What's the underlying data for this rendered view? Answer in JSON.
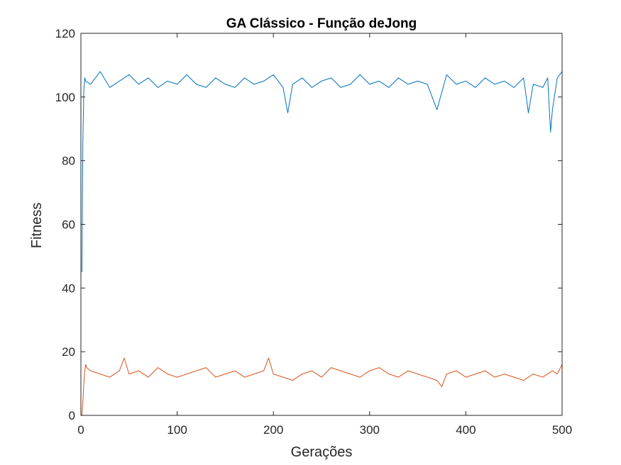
{
  "chart_data": {
    "type": "line",
    "title": "GA Clássico - Função deJong",
    "xlabel": "Gerações",
    "ylabel": "Fitness",
    "xlim": [
      0,
      500
    ],
    "ylim": [
      0,
      120
    ],
    "xticks": [
      0,
      100,
      200,
      300,
      400,
      500
    ],
    "yticks": [
      0,
      20,
      40,
      60,
      80,
      100,
      120
    ],
    "grid": false,
    "legend": "none",
    "series": [
      {
        "color": "#0072BD",
        "x": [
          1,
          2,
          3,
          4,
          5,
          10,
          20,
          30,
          40,
          50,
          60,
          70,
          80,
          90,
          100,
          110,
          120,
          130,
          140,
          150,
          160,
          170,
          180,
          190,
          200,
          210,
          215,
          220,
          230,
          240,
          250,
          260,
          270,
          280,
          290,
          300,
          310,
          320,
          330,
          340,
          350,
          360,
          370,
          380,
          390,
          400,
          410,
          420,
          430,
          440,
          450,
          460,
          465,
          470,
          480,
          485,
          488,
          490,
          495,
          500
        ],
        "values": [
          45,
          85,
          102,
          106,
          105,
          104,
          108,
          103,
          105,
          107,
          104,
          106,
          103,
          105,
          104,
          107,
          104,
          103,
          106,
          104,
          103,
          106,
          104,
          105,
          107,
          103,
          95,
          104,
          106,
          103,
          105,
          106,
          103,
          104,
          107,
          104,
          105,
          103,
          106,
          104,
          105,
          104,
          96,
          107,
          104,
          105,
          103,
          106,
          104,
          105,
          103,
          106,
          95,
          104,
          103,
          106,
          89,
          96,
          106,
          108
        ]
      },
      {
        "color": "#D95319",
        "x": [
          1,
          2,
          3,
          4,
          5,
          6,
          10,
          20,
          30,
          40,
          45,
          50,
          60,
          70,
          80,
          90,
          100,
          110,
          120,
          130,
          140,
          150,
          160,
          170,
          180,
          190,
          195,
          200,
          210,
          220,
          230,
          240,
          250,
          260,
          270,
          280,
          290,
          300,
          310,
          320,
          330,
          340,
          350,
          360,
          370,
          375,
          380,
          390,
          400,
          410,
          420,
          430,
          440,
          450,
          460,
          470,
          480,
          490,
          495,
          500
        ],
        "values": [
          0,
          4,
          10,
          14,
          16,
          15,
          14,
          13,
          12,
          14,
          18,
          13,
          14,
          12,
          15,
          13,
          12,
          13,
          14,
          15,
          12,
          13,
          14,
          12,
          13,
          14,
          18,
          13,
          12,
          11,
          13,
          14,
          12,
          15,
          14,
          13,
          12,
          14,
          15,
          13,
          12,
          14,
          13,
          12,
          11,
          9,
          13,
          14,
          12,
          13,
          14,
          12,
          13,
          12,
          11,
          13,
          12,
          14,
          13,
          16
        ]
      }
    ]
  }
}
